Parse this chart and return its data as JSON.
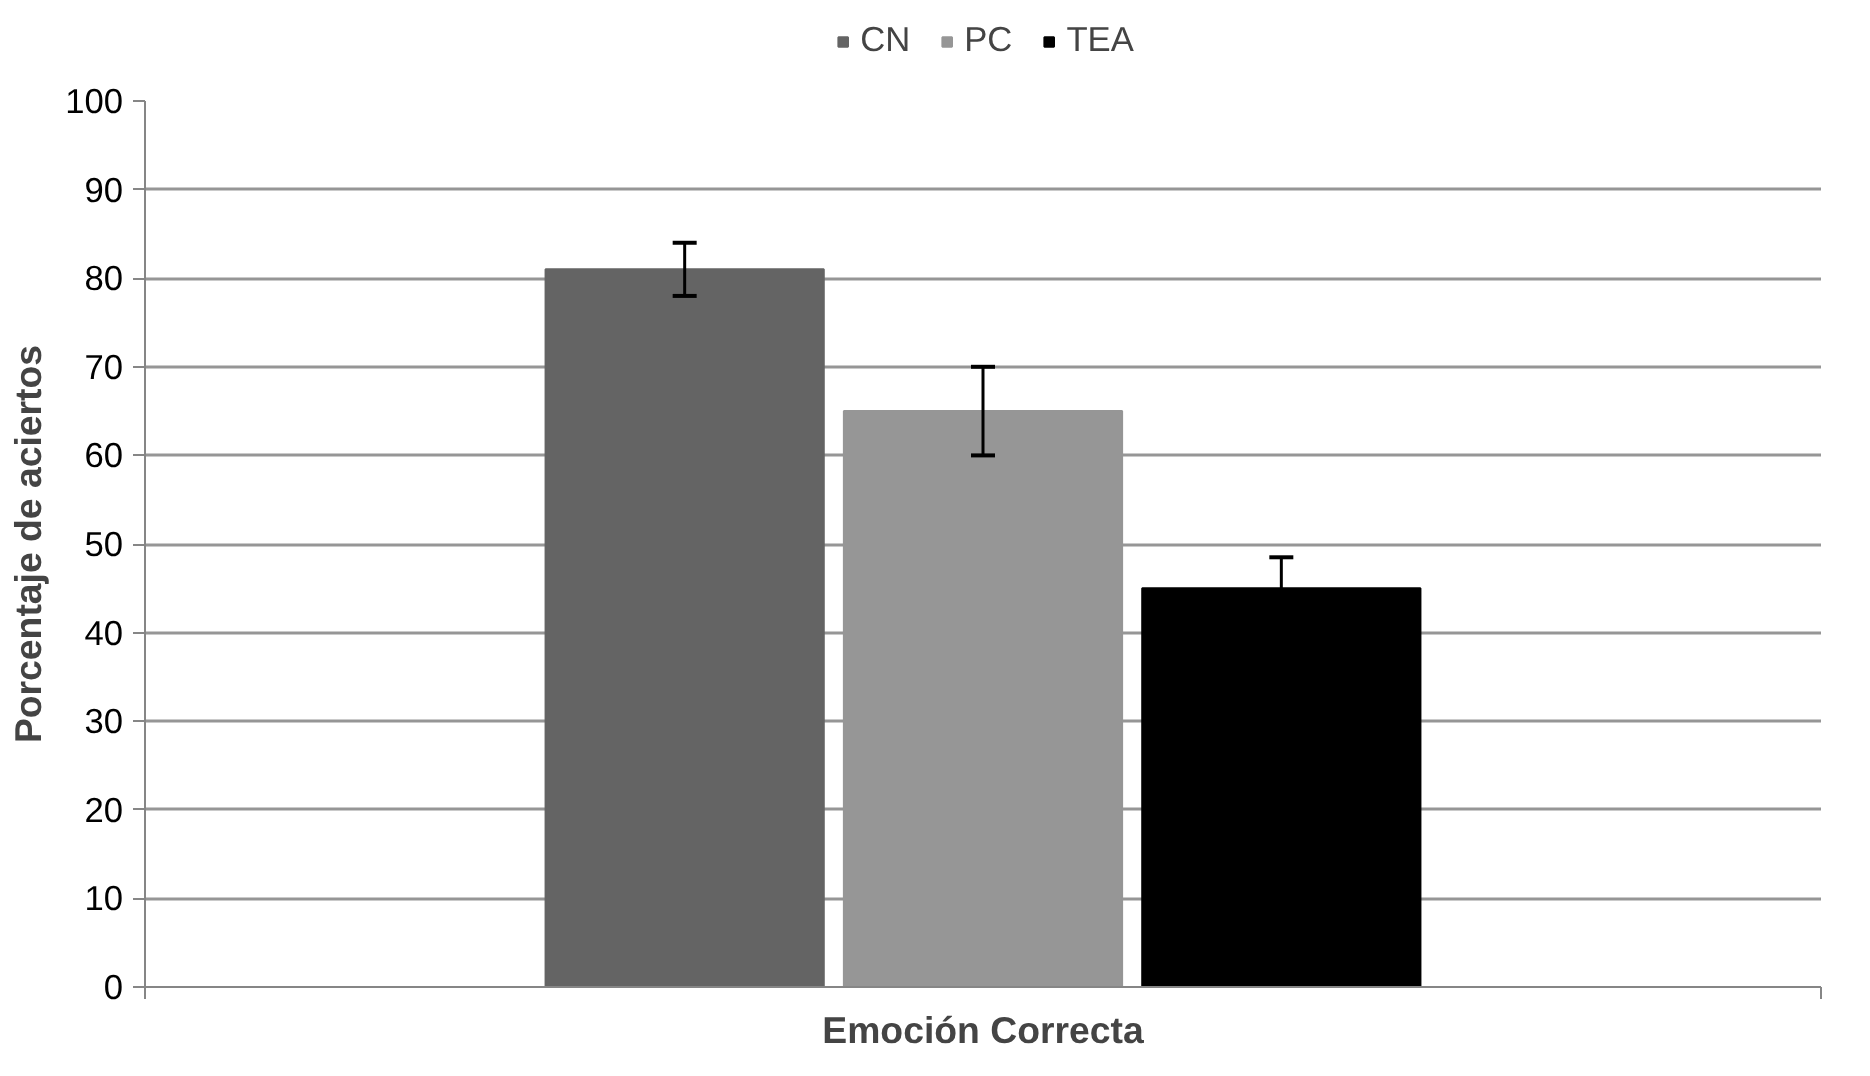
{
  "chart_data": {
    "type": "bar",
    "xlabel": "Emoción Correcta",
    "ylabel": "Porcentaje de aciertos",
    "categories": [
      null
    ],
    "series": [
      {
        "name": "CN",
        "color": "#646464",
        "values": [
          81
        ],
        "errors": [
          3
        ]
      },
      {
        "name": "PC",
        "color": "#969696",
        "values": [
          65
        ],
        "errors": [
          5
        ]
      },
      {
        "name": "TEA",
        "color": "#000000",
        "values": [
          45
        ],
        "errors": [
          3.5
        ]
      }
    ],
    "ylim": [
      0,
      100
    ],
    "yticks": [
      0,
      10,
      20,
      30,
      40,
      50,
      60,
      70,
      80,
      90,
      100
    ],
    "grid": "y",
    "legend": "top"
  }
}
